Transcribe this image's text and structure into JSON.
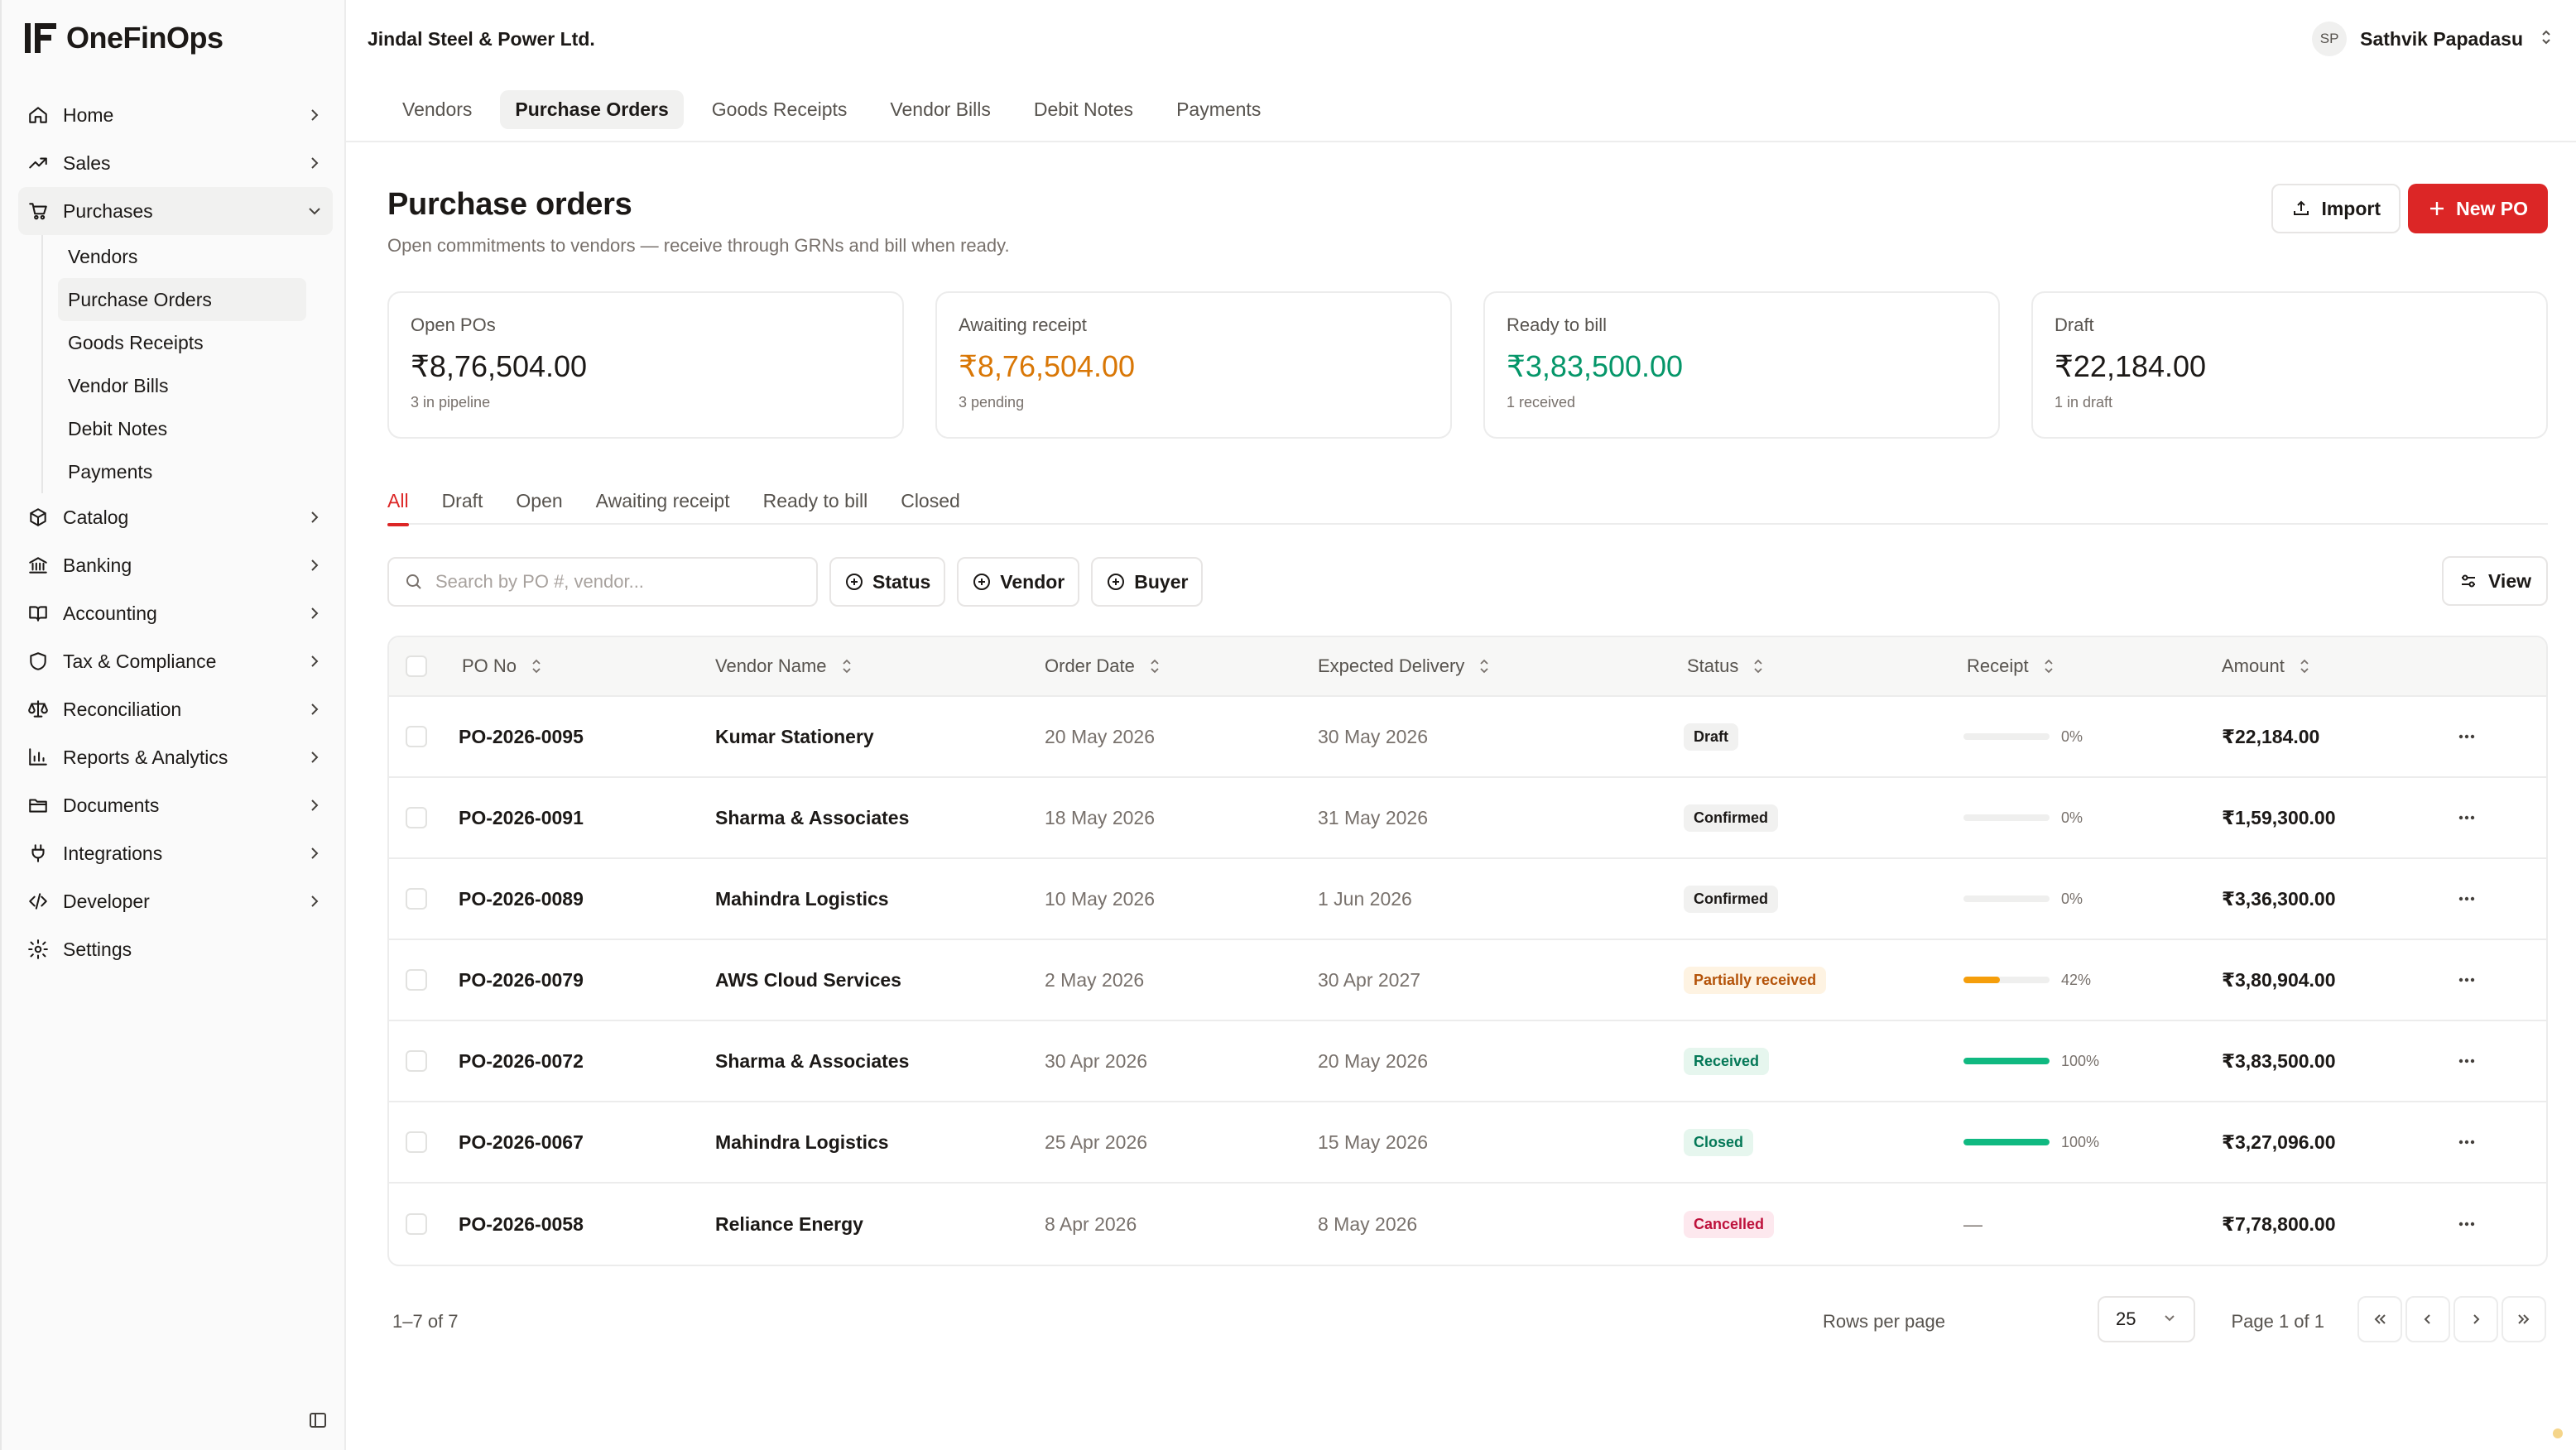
{
  "brand": {
    "name": "OneFinOps"
  },
  "sidebar": {
    "items": [
      {
        "label": "Home",
        "icon": "home-icon"
      },
      {
        "label": "Sales",
        "icon": "trending-up-icon"
      },
      {
        "label": "Purchases",
        "icon": "cart-icon",
        "open": true,
        "children": [
          "Vendors",
          "Purchase Orders",
          "Goods Receipts",
          "Vendor Bills",
          "Debit Notes",
          "Payments"
        ],
        "active_child": "Purchase Orders"
      },
      {
        "label": "Catalog",
        "icon": "box-icon"
      },
      {
        "label": "Banking",
        "icon": "bank-icon"
      },
      {
        "label": "Accounting",
        "icon": "book-icon"
      },
      {
        "label": "Tax & Compliance",
        "icon": "shield-icon"
      },
      {
        "label": "Reconciliation",
        "icon": "scale-icon"
      },
      {
        "label": "Reports & Analytics",
        "icon": "bar-chart-icon"
      },
      {
        "label": "Documents",
        "icon": "folder-icon"
      },
      {
        "label": "Integrations",
        "icon": "plug-icon"
      },
      {
        "label": "Developer",
        "icon": "code-icon"
      },
      {
        "label": "Settings",
        "icon": "gear-icon"
      }
    ]
  },
  "header": {
    "company": "Jindal Steel & Power Ltd.",
    "user": {
      "initials": "SP",
      "name": "Sathvik Papadasu"
    }
  },
  "tabs": [
    "Vendors",
    "Purchase Orders",
    "Goods Receipts",
    "Vendor Bills",
    "Debit Notes",
    "Payments"
  ],
  "active_tab": "Purchase Orders",
  "page": {
    "title": "Purchase orders",
    "subtitle": "Open commitments to vendors — receive through GRNs and bill when ready.",
    "import_label": "Import",
    "new_label": "New PO"
  },
  "kpis": [
    {
      "label": "Open POs",
      "value": "₹8,76,504.00",
      "note": "3 in pipeline",
      "color": "#1c1917"
    },
    {
      "label": "Awaiting receipt",
      "value": "₹8,76,504.00",
      "note": "3 pending",
      "color": "#d97706"
    },
    {
      "label": "Ready to bill",
      "value": "₹3,83,500.00",
      "note": "1 received",
      "color": "#059669"
    },
    {
      "label": "Draft",
      "value": "₹22,184.00",
      "note": "1 in draft",
      "color": "#1c1917"
    }
  ],
  "filter_tabs": [
    "All",
    "Draft",
    "Open",
    "Awaiting receipt",
    "Ready to bill",
    "Closed"
  ],
  "active_filter": "All",
  "toolbar": {
    "search_placeholder": "Search by PO #, vendor...",
    "chips": [
      "Status",
      "Vendor",
      "Buyer"
    ],
    "view_label": "View"
  },
  "table": {
    "columns": [
      "PO No",
      "Vendor Name",
      "Order Date",
      "Expected Delivery",
      "Status",
      "Receipt",
      "Amount"
    ],
    "rows": [
      {
        "po": "PO-2026-0095",
        "vendor": "Kumar Stationery",
        "order": "20 May 2026",
        "expected": "30 May 2026",
        "status": "Draft",
        "status_bg": "#f1f1f0",
        "status_fg": "#1c1917",
        "receipt": 0,
        "receipt_label": "0%",
        "fill": "#e7e5e4",
        "amount": "₹22,184.00"
      },
      {
        "po": "PO-2026-0091",
        "vendor": "Sharma & Associates",
        "order": "18 May 2026",
        "expected": "31 May 2026",
        "status": "Confirmed",
        "status_bg": "#f1f1f0",
        "status_fg": "#1c1917",
        "receipt": 0,
        "receipt_label": "0%",
        "fill": "#e7e5e4",
        "amount": "₹1,59,300.00"
      },
      {
        "po": "PO-2026-0089",
        "vendor": "Mahindra Logistics",
        "order": "10 May 2026",
        "expected": "1 Jun 2026",
        "status": "Confirmed",
        "status_bg": "#f1f1f0",
        "status_fg": "#1c1917",
        "receipt": 0,
        "receipt_label": "0%",
        "fill": "#e7e5e4",
        "amount": "₹3,36,300.00"
      },
      {
        "po": "PO-2026-0079",
        "vendor": "AWS Cloud Services",
        "order": "2 May 2026",
        "expected": "30 Apr 2027",
        "status": "Partially received",
        "status_bg": "#fef3e2",
        "status_fg": "#b45309",
        "receipt": 42,
        "receipt_label": "42%",
        "fill": "#f59e0b",
        "amount": "₹3,80,904.00"
      },
      {
        "po": "PO-2026-0072",
        "vendor": "Sharma & Associates",
        "order": "30 Apr 2026",
        "expected": "20 May 2026",
        "status": "Received",
        "status_bg": "#e6f6ee",
        "status_fg": "#047857",
        "receipt": 100,
        "receipt_label": "100%",
        "fill": "#10b981",
        "amount": "₹3,83,500.00"
      },
      {
        "po": "PO-2026-0067",
        "vendor": "Mahindra Logistics",
        "order": "25 Apr 2026",
        "expected": "15 May 2026",
        "status": "Closed",
        "status_bg": "#e6f6ee",
        "status_fg": "#047857",
        "receipt": 100,
        "receipt_label": "100%",
        "fill": "#10b981",
        "amount": "₹3,27,096.00"
      },
      {
        "po": "PO-2026-0058",
        "vendor": "Reliance Energy",
        "order": "8 Apr 2026",
        "expected": "8 May 2026",
        "status": "Cancelled",
        "status_bg": "#fde8ee",
        "status_fg": "#be123c",
        "receipt": null,
        "receipt_label": "—",
        "fill": "",
        "amount": "₹7,78,800.00"
      }
    ]
  },
  "pagination": {
    "range": "1–7 of 7",
    "rows_per_page_label": "Rows per page",
    "rows_per_page": "25",
    "page_info": "Page 1 of 1"
  }
}
